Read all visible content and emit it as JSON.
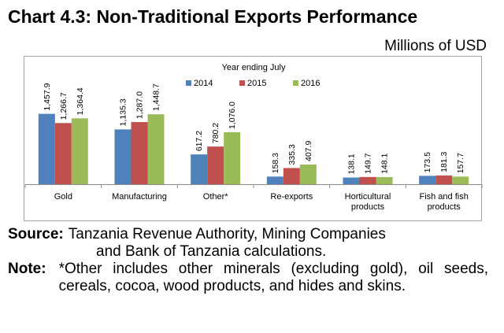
{
  "title": "Chart 4.3: Non-Traditional Exports Performance",
  "units": "Millions of USD",
  "chart_data": {
    "type": "bar",
    "title": "Year ending July",
    "categories": [
      "Gold",
      "Manufacturing",
      "Other*",
      "Re-exports",
      "Horticultural products",
      "Fish and fish products"
    ],
    "category_lines": [
      [
        "Gold"
      ],
      [
        "Manufacturing"
      ],
      [
        "Other*"
      ],
      [
        "Re-exports"
      ],
      [
        "Horticultural",
        "products"
      ],
      [
        "Fish and fish",
        "products"
      ]
    ],
    "series": [
      {
        "name": "2014",
        "color": "#4f81bd",
        "values": [
          1457.9,
          1135.3,
          617.2,
          158.3,
          138.1,
          173.5
        ],
        "labels": [
          "1,457.9",
          "1,135.3",
          "617.2",
          "158.3",
          "138.1",
          "173.5"
        ]
      },
      {
        "name": "2015",
        "color": "#c0504d",
        "values": [
          1266.7,
          1287.0,
          780.2,
          335.3,
          149.7,
          181.3
        ],
        "labels": [
          "1,266.7",
          "1,287.0",
          "780.2",
          "335.3",
          "149.7",
          "181.3"
        ]
      },
      {
        "name": "2016",
        "color": "#9bbb59",
        "values": [
          1364.4,
          1448.7,
          1076.0,
          407.9,
          148.1,
          157.7
        ],
        "labels": [
          "1,364.4",
          "1,448.7",
          "1,076.0",
          "407.9",
          "148.1",
          "157.7"
        ]
      }
    ],
    "ylim": [
      0,
      1500
    ],
    "xlabel": "",
    "ylabel": "",
    "legend": "top",
    "grid": false
  },
  "notes": {
    "source_label": "Source:",
    "source_line1": "Tanzania Revenue Authority, Mining Companies",
    "source_line2": "and Bank of Tanzania calculations.",
    "note_label": "Note:",
    "note_text": "*Other includes other minerals (excluding gold), oil seeds, cereals, cocoa, wood products, and hides and skins."
  }
}
